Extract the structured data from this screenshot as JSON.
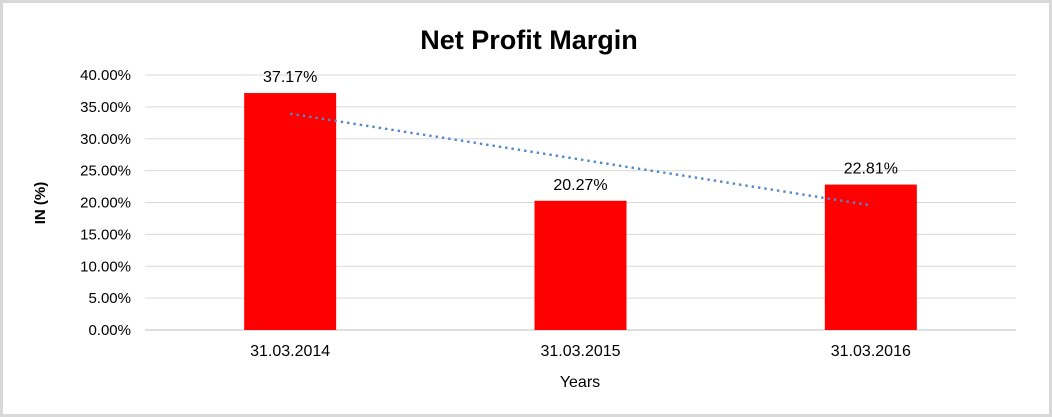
{
  "chart_data": {
    "type": "bar",
    "title": "Net Profit Margin",
    "xlabel": "Years",
    "ylabel": "IN (%)",
    "categories": [
      "31.03.2014",
      "31.03.2015",
      "31.03.2016"
    ],
    "values": [
      37.17,
      20.27,
      22.81
    ],
    "data_labels": [
      "37.17%",
      "20.27%",
      "22.81%"
    ],
    "ylim": [
      0,
      40
    ],
    "y_tick_step": 5,
    "y_tick_labels": [
      "0.00%",
      "5.00%",
      "10.00%",
      "15.00%",
      "20.00%",
      "25.00%",
      "30.00%",
      "35.00%",
      "40.00%"
    ],
    "grid": true,
    "legend": "none",
    "bar_color": "#FF0000",
    "gridline_color": "#D9D9D9",
    "axis_line_color": "#BFBFBF",
    "text_color": "#000000",
    "frame_border_color": "#D8D8D8",
    "trendline": {
      "type": "linear",
      "style": "dotted",
      "color": "#5089C8",
      "start_value": 33.93,
      "end_value": 19.57
    }
  }
}
